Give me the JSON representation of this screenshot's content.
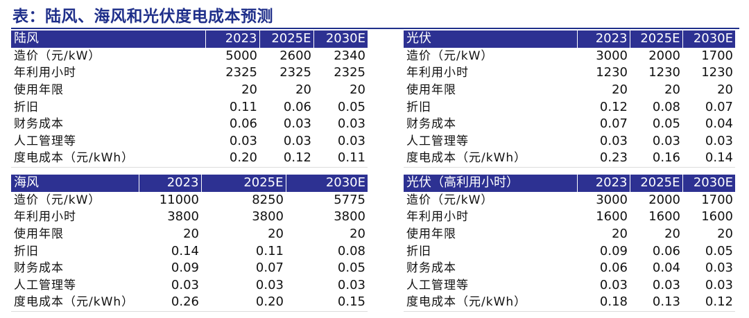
{
  "title": "表：陆风、海风和光伏度电成本预测",
  "tables": [
    {
      "id": "onshore",
      "header": [
        "陆风",
        "2023",
        "2025E",
        "2030E"
      ],
      "rows": [
        [
          "造价（元/kW）",
          "5000",
          "2600",
          "2340"
        ],
        [
          "年利用小时",
          "2325",
          "2325",
          "2325"
        ],
        [
          "使用年限",
          "20",
          "20",
          "20"
        ],
        [
          "折旧",
          "0.11",
          "0.06",
          "0.05"
        ],
        [
          "财务成本",
          "0.06",
          "0.03",
          "0.03"
        ],
        [
          "人工管理等",
          "0.03",
          "0.03",
          "0.03"
        ],
        [
          "度电成本（元/kWh）",
          "0.20",
          "0.12",
          "0.11"
        ]
      ]
    },
    {
      "id": "solar",
      "header": [
        "光伏",
        "2023",
        "2025E",
        "2030E"
      ],
      "rows": [
        [
          "造价（元/kW）",
          "3000",
          "2000",
          "1700"
        ],
        [
          "年利用小时",
          "1230",
          "1230",
          "1230"
        ],
        [
          "使用年限",
          "20",
          "20",
          "20"
        ],
        [
          "折旧",
          "0.12",
          "0.08",
          "0.07"
        ],
        [
          "财务成本",
          "0.07",
          "0.05",
          "0.04"
        ],
        [
          "人工管理等",
          "0.03",
          "0.03",
          "0.03"
        ],
        [
          "度电成本（元/kWh）",
          "0.23",
          "0.16",
          "0.14"
        ]
      ]
    },
    {
      "id": "offshore",
      "header": [
        "海风",
        "2023",
        "2025E",
        "2030E"
      ],
      "rows": [
        [
          "造价（元/kW）",
          "11000",
          "8250",
          "5775"
        ],
        [
          "年利用小时",
          "3800",
          "3800",
          "3800"
        ],
        [
          "使用年限",
          "20",
          "20",
          "20"
        ],
        [
          "折旧",
          "0.14",
          "0.11",
          "0.08"
        ],
        [
          "财务成本",
          "0.09",
          "0.07",
          "0.05"
        ],
        [
          "人工管理等",
          "0.03",
          "0.03",
          "0.03"
        ],
        [
          "度电成本（元/kWh）",
          "0.26",
          "0.20",
          "0.15"
        ]
      ]
    },
    {
      "id": "solar-high",
      "header": [
        "光伏（高利用小时）",
        "2023",
        "2025E",
        "2030E"
      ],
      "rows": [
        [
          "造价（元/kW）",
          "3000",
          "2000",
          "1700"
        ],
        [
          "年利用小时",
          "1600",
          "1600",
          "1600"
        ],
        [
          "使用年限",
          "20",
          "20",
          "20"
        ],
        [
          "折旧",
          "0.09",
          "0.06",
          "0.05"
        ],
        [
          "财务成本",
          "0.06",
          "0.04",
          "0.03"
        ],
        [
          "人工管理等",
          "0.03",
          "0.03",
          "0.03"
        ],
        [
          "度电成本（元/kWh）",
          "0.18",
          "0.13",
          "0.12"
        ]
      ]
    }
  ],
  "colors": {
    "header_bg": "#2d3192",
    "title": "#1f2f8a"
  }
}
